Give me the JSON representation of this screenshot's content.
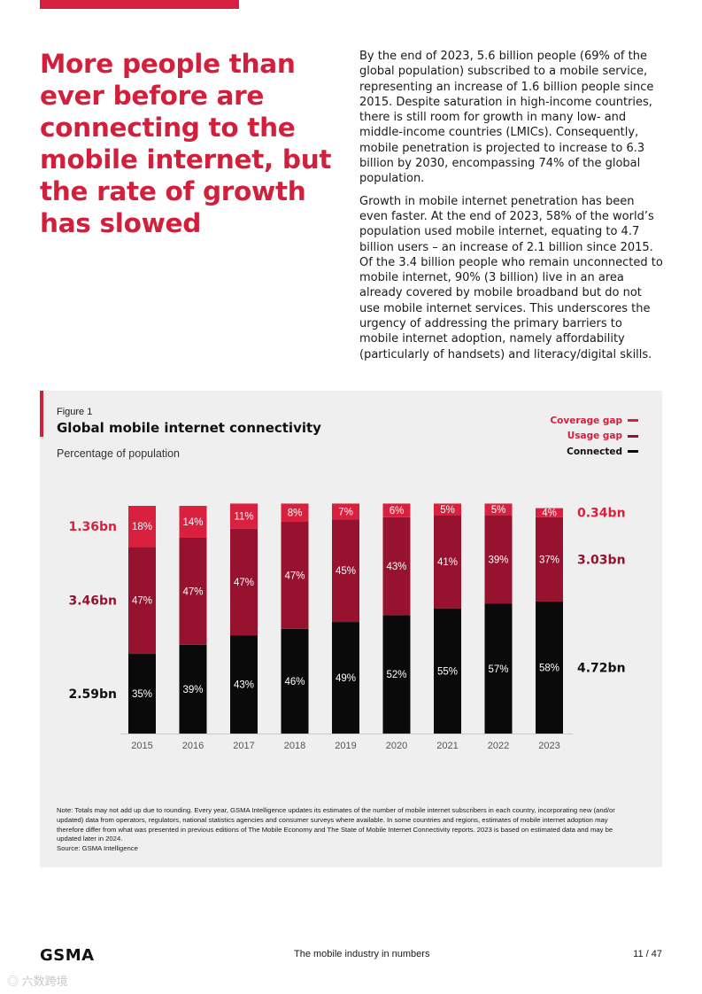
{
  "headline": "More people than ever before are connecting to the mobile internet, but the rate of growth has slowed",
  "paragraphs": [
    "By the end of 2023, 5.6 billion people (69% of the global population) subscribed to a mobile service, representing an increase of 1.6 billion people since 2015. Despite saturation in high-income countries, there is still room for growth in many low- and middle-income countries (LMICs). Consequently, mobile penetration is projected to increase to 6.3 billion by 2030, encompassing 74% of the global population.",
    "Growth in mobile internet penetration has been even faster. At the end of 2023, 58% of the world’s population used mobile internet, equating to 4.7 billion users – an increase of 2.1 billion since 2015. Of the 3.4 billion people who remain unconnected to mobile internet, 90% (3 billion) live in an area already covered by mobile broadband but do not use mobile internet services. This underscores the urgency of addressing the primary barriers to mobile internet adoption, namely affordability (particularly of handsets) and literacy/digital skills."
  ],
  "figure": {
    "label": "Figure 1",
    "title": "Global mobile internet connectivity",
    "subtitle": "Percentage of population",
    "note": "Note: Totals may not add up due to rounding. Every year, GSMA Intelligence updates its estimates of the number of mobile internet subscribers in each country, incorporating new (and/or updated) data from operators, regulators, national statistics agencies and consumer surveys where available. In some countries and regions, estimates of mobile internet adoption may therefore differ from what was presented in previous editions of The Mobile Economy and The State of Mobile Internet Connectivity reports. 2023 is based on estimated data and may be updated later in 2024.",
    "source": "Source: GSMA Intelligence"
  },
  "chart_data": {
    "type": "bar",
    "stacked": true,
    "title": "Global mobile internet connectivity",
    "ylabel": "Percentage of population",
    "ylim": [
      0,
      100
    ],
    "categories": [
      "2015",
      "2016",
      "2017",
      "2018",
      "2019",
      "2020",
      "2021",
      "2022",
      "2023"
    ],
    "series": [
      {
        "name": "Connected",
        "color": "#0a0a0a",
        "values": [
          35,
          39,
          43,
          46,
          49,
          52,
          55,
          57,
          58
        ]
      },
      {
        "name": "Usage gap",
        "color": "#96122f",
        "values": [
          47,
          47,
          47,
          47,
          45,
          43,
          41,
          39,
          37
        ]
      },
      {
        "name": "Coverage gap",
        "color": "#d9213f",
        "values": [
          18,
          14,
          11,
          8,
          7,
          6,
          5,
          5,
          4
        ]
      }
    ],
    "legend": [
      "Coverage gap",
      "Usage gap",
      "Connected"
    ],
    "left_annotations": {
      "Coverage gap": "1.36bn",
      "Usage gap": "3.46bn",
      "Connected": "2.59bn"
    },
    "right_annotations": {
      "Coverage gap": "0.34bn",
      "Usage gap": "3.03bn",
      "Connected": "4.72bn"
    }
  },
  "colors": {
    "accent": "#d0203c",
    "coverage": "#d9213f",
    "usage": "#96122f",
    "connected": "#0a0a0a",
    "panel": "#efefef"
  },
  "footer": {
    "logo": "GSMA",
    "center": "The mobile industry in numbers",
    "page": "11 / 47"
  },
  "watermark": "六数跨境"
}
